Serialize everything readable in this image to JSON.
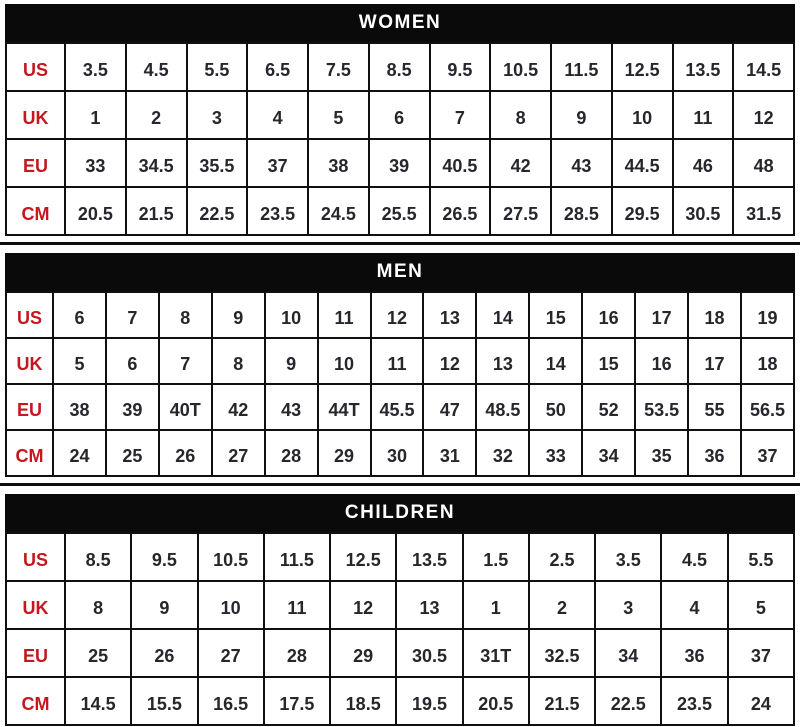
{
  "colors": {
    "header_bg": "#0a0a0a",
    "header_text": "#ffffff",
    "label_red": "#c5171d",
    "value_color": "#26262c",
    "border_color": "#101010"
  },
  "tables": [
    {
      "title": "WOMEN",
      "rows": [
        {
          "label": "US",
          "values": [
            "3.5",
            "4.5",
            "5.5",
            "6.5",
            "7.5",
            "8.5",
            "9.5",
            "10.5",
            "11.5",
            "12.5",
            "13.5",
            "14.5"
          ]
        },
        {
          "label": "UK",
          "values": [
            "1",
            "2",
            "3",
            "4",
            "5",
            "6",
            "7",
            "8",
            "9",
            "10",
            "11",
            "12"
          ]
        },
        {
          "label": "EU",
          "values": [
            "33",
            "34.5",
            "35.5",
            "37",
            "38",
            "39",
            "40.5",
            "42",
            "43",
            "44.5",
            "46",
            "48"
          ]
        },
        {
          "label": "CM",
          "values": [
            "20.5",
            "21.5",
            "22.5",
            "23.5",
            "24.5",
            "25.5",
            "26.5",
            "27.5",
            "28.5",
            "29.5",
            "30.5",
            "31.5"
          ]
        }
      ]
    },
    {
      "title": "MEN",
      "rows": [
        {
          "label": "US",
          "values": [
            "6",
            "7",
            "8",
            "9",
            "10",
            "11",
            "12",
            "13",
            "14",
            "15",
            "16",
            "17",
            "18",
            "19"
          ]
        },
        {
          "label": "UK",
          "values": [
            "5",
            "6",
            "7",
            "8",
            "9",
            "10",
            "11",
            "12",
            "13",
            "14",
            "15",
            "16",
            "17",
            "18"
          ]
        },
        {
          "label": "EU",
          "values": [
            "38",
            "39",
            "40T",
            "42",
            "43",
            "44T",
            "45.5",
            "47",
            "48.5",
            "50",
            "52",
            "53.5",
            "55",
            "56.5"
          ]
        },
        {
          "label": "CM",
          "values": [
            "24",
            "25",
            "26",
            "27",
            "28",
            "29",
            "30",
            "31",
            "32",
            "33",
            "34",
            "35",
            "36",
            "37"
          ]
        }
      ]
    },
    {
      "title": "CHILDREN",
      "rows": [
        {
          "label": "US",
          "values": [
            "8.5",
            "9.5",
            "10.5",
            "11.5",
            "12.5",
            "13.5",
            "1.5",
            "2.5",
            "3.5",
            "4.5",
            "5.5"
          ]
        },
        {
          "label": "UK",
          "values": [
            "8",
            "9",
            "10",
            "11",
            "12",
            "13",
            "1",
            "2",
            "3",
            "4",
            "5"
          ]
        },
        {
          "label": "EU",
          "values": [
            "25",
            "26",
            "27",
            "28",
            "29",
            "30.5",
            "31T",
            "32.5",
            "34",
            "36",
            "37"
          ]
        },
        {
          "label": "CM",
          "values": [
            "14.5",
            "15.5",
            "16.5",
            "17.5",
            "18.5",
            "19.5",
            "20.5",
            "21.5",
            "22.5",
            "23.5",
            "24"
          ]
        }
      ]
    }
  ]
}
